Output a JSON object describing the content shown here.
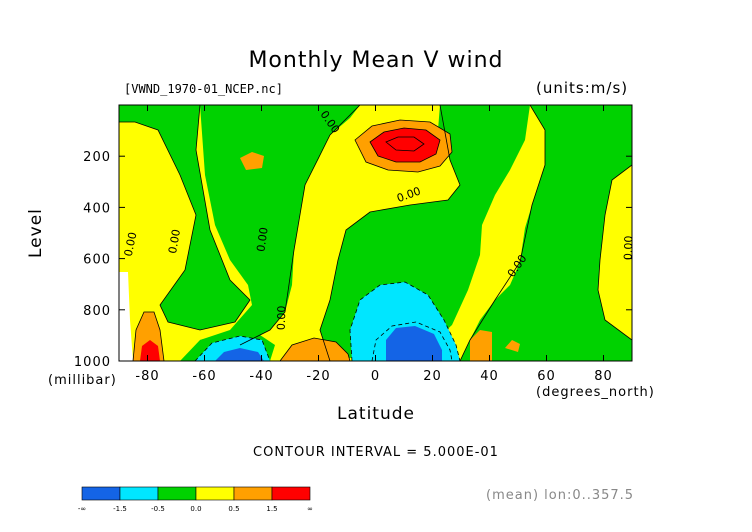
{
  "chart_data": {
    "type": "heatmap",
    "title": "Monthly Mean V wind",
    "source_label": "[VWND_1970-01_NCEP.nc]",
    "units_label": "(units:m/s)",
    "xlabel": "Latitude",
    "x_unit": "(degrees_north)",
    "ylabel": "Level",
    "y_unit": "(millibar)",
    "xlim": [
      -90,
      90
    ],
    "ylim": [
      1000,
      0
    ],
    "x_ticks": [
      -80,
      -60,
      -40,
      -20,
      0,
      20,
      40,
      60,
      80
    ],
    "x_tick_labels": [
      "-80",
      "-60",
      "-40",
      "-20",
      "0",
      "20",
      "40",
      "60",
      "80"
    ],
    "y_ticks": [
      200,
      400,
      600,
      800,
      1000
    ],
    "y_tick_labels": [
      "200",
      "400",
      "600",
      "800",
      "1000"
    ],
    "contour_interval_text": "CONTOUR INTERVAL = 5.000E-01",
    "contour_labels": [
      "0.00"
    ],
    "colorbar": {
      "boundaries": [
        "-∞",
        "-1.5",
        "-0.5",
        "0.0",
        "0.5",
        "1.5",
        "∞"
      ],
      "colors": [
        "#1464e6",
        "#00e6ff",
        "#00d200",
        "#ffff00",
        "#ffa000",
        "#ff0000"
      ]
    },
    "grid": false,
    "footer_note": "(mean) lon:0..357.5"
  }
}
